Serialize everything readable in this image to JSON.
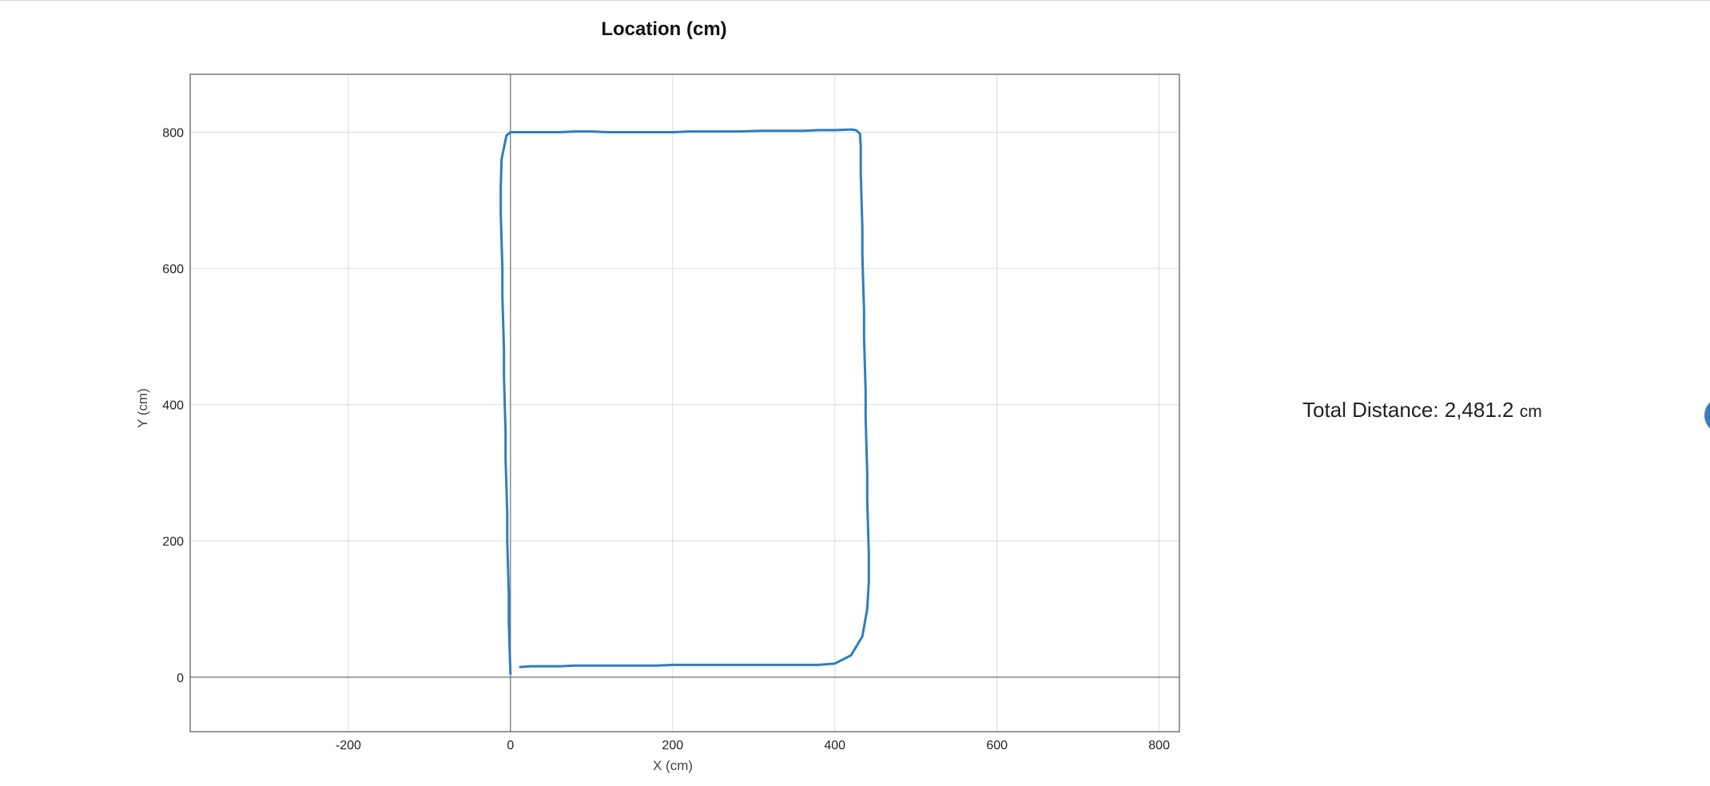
{
  "summary": {
    "label": "Total Distance: ",
    "value": "2,481.2",
    "unit": "cm"
  },
  "chart_data": {
    "type": "line",
    "title": "Location (cm)",
    "xlabel": "X (cm)",
    "ylabel": "Y (cm)",
    "xlim": [
      -395,
      825
    ],
    "ylim": [
      -80,
      885
    ],
    "xticks": [
      -200,
      0,
      200,
      400,
      600,
      800
    ],
    "yticks": [
      0,
      200,
      400,
      600,
      800
    ],
    "grid": true,
    "legend": "none",
    "series_color": "#2f7ebf",
    "series": [
      {
        "x": [
          0,
          -1,
          -2,
          -2,
          -3,
          -4,
          -4,
          -5,
          -6,
          -6,
          -7,
          -8,
          -8,
          -9,
          -10,
          -10,
          -11,
          -12,
          -12,
          -11,
          -5,
          0,
          20,
          40,
          60,
          80,
          100,
          120,
          150,
          180,
          200,
          220,
          250,
          280,
          310,
          340,
          360,
          380,
          400,
          420,
          426,
          431,
          432,
          432,
          433,
          434,
          434,
          435,
          436,
          436,
          437,
          438,
          438,
          439,
          440,
          440,
          441,
          442,
          442,
          440,
          434,
          420,
          400,
          380,
          350,
          320,
          290,
          260,
          240,
          220,
          200,
          180,
          160,
          140,
          120,
          100,
          80,
          60,
          40,
          25,
          12
        ],
        "y": [
          5,
          40,
          80,
          120,
          160,
          200,
          240,
          280,
          320,
          360,
          400,
          440,
          480,
          520,
          560,
          600,
          640,
          680,
          720,
          760,
          795,
          800,
          800,
          800,
          800,
          801,
          801,
          800,
          800,
          800,
          800,
          801,
          801,
          801,
          802,
          802,
          802,
          803,
          803,
          804,
          803,
          798,
          780,
          740,
          700,
          660,
          620,
          580,
          540,
          500,
          460,
          420,
          380,
          340,
          300,
          260,
          220,
          180,
          140,
          100,
          60,
          32,
          20,
          18,
          18,
          18,
          18,
          18,
          18,
          18,
          18,
          17,
          17,
          17,
          17,
          17,
          17,
          16,
          16,
          16,
          15
        ]
      }
    ]
  }
}
